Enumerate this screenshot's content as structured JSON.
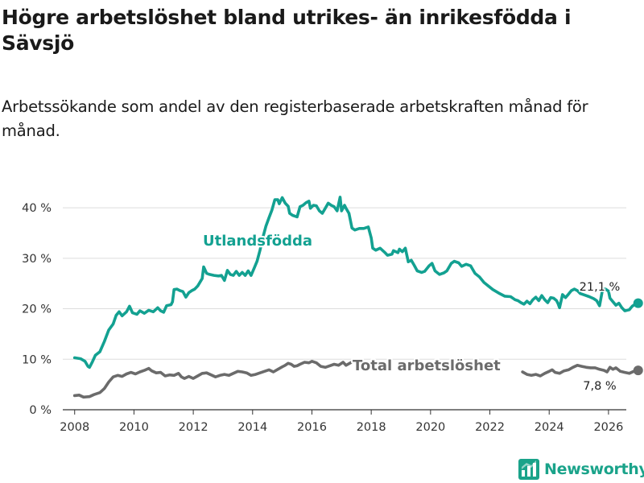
{
  "title": "Högre arbetslöshet bland utrikes- än inrikesfödda i Sävsjö",
  "subtitle": "Arbetssökande som andel av den registerbaserade arbetskraften månad för månad.",
  "brand": {
    "name": "Newsworthy",
    "color": "#1aa38a"
  },
  "chart_data": {
    "type": "line",
    "x_ticks": [
      2008,
      2010,
      2012,
      2014,
      2016,
      2018,
      2020,
      2022,
      2024,
      2026
    ],
    "y_ticks": [
      {
        "value": 0,
        "label": "0 %"
      },
      {
        "value": 10,
        "label": "10 %"
      },
      {
        "value": 20,
        "label": "20 %"
      },
      {
        "value": 30,
        "label": "30 %"
      },
      {
        "value": 40,
        "label": "40 %"
      }
    ],
    "xlim": [
      2007.6,
      2026.6
    ],
    "ylim": [
      0,
      44
    ],
    "grid": true,
    "series": [
      {
        "name": "Utlandsfödda",
        "label": "Utlandsfödda",
        "color": "#13a191",
        "end_label": "21,1 %",
        "points": [
          [
            2008.0,
            10.3
          ],
          [
            2008.2,
            10.1
          ],
          [
            2008.35,
            9.6
          ],
          [
            2008.45,
            8.6
          ],
          [
            2008.5,
            8.4
          ],
          [
            2008.6,
            9.5
          ],
          [
            2008.7,
            10.8
          ],
          [
            2008.85,
            11.5
          ],
          [
            2009.0,
            13.5
          ],
          [
            2009.15,
            15.8
          ],
          [
            2009.3,
            17.0
          ],
          [
            2009.4,
            18.7
          ],
          [
            2009.5,
            19.4
          ],
          [
            2009.6,
            18.6
          ],
          [
            2009.75,
            19.4
          ],
          [
            2009.85,
            20.5
          ],
          [
            2009.95,
            19.2
          ],
          [
            2010.1,
            18.9
          ],
          [
            2010.2,
            19.6
          ],
          [
            2010.35,
            19.1
          ],
          [
            2010.5,
            19.7
          ],
          [
            2010.65,
            19.4
          ],
          [
            2010.8,
            20.2
          ],
          [
            2010.9,
            19.6
          ],
          [
            2011.0,
            19.3
          ],
          [
            2011.1,
            20.6
          ],
          [
            2011.25,
            20.8
          ],
          [
            2011.3,
            21.4
          ],
          [
            2011.35,
            23.8
          ],
          [
            2011.45,
            23.9
          ],
          [
            2011.55,
            23.6
          ],
          [
            2011.65,
            23.4
          ],
          [
            2011.75,
            22.3
          ],
          [
            2011.85,
            23.2
          ],
          [
            2011.95,
            23.6
          ],
          [
            2012.05,
            23.9
          ],
          [
            2012.15,
            24.5
          ],
          [
            2012.3,
            26.0
          ],
          [
            2012.35,
            28.3
          ],
          [
            2012.45,
            27.0
          ],
          [
            2012.55,
            26.8
          ],
          [
            2012.7,
            26.6
          ],
          [
            2012.85,
            26.5
          ],
          [
            2012.95,
            26.6
          ],
          [
            2013.05,
            25.6
          ],
          [
            2013.15,
            27.6
          ],
          [
            2013.25,
            26.8
          ],
          [
            2013.35,
            26.6
          ],
          [
            2013.45,
            27.4
          ],
          [
            2013.55,
            26.6
          ],
          [
            2013.65,
            27.2
          ],
          [
            2013.75,
            26.6
          ],
          [
            2013.85,
            27.5
          ],
          [
            2013.95,
            26.6
          ],
          [
            2014.05,
            28.0
          ],
          [
            2014.15,
            29.4
          ],
          [
            2014.25,
            31.6
          ],
          [
            2014.35,
            34.2
          ],
          [
            2014.45,
            36.4
          ],
          [
            2014.55,
            38.0
          ],
          [
            2014.65,
            39.5
          ],
          [
            2014.75,
            41.6
          ],
          [
            2014.85,
            41.6
          ],
          [
            2014.9,
            40.8
          ],
          [
            2015.0,
            42.0
          ],
          [
            2015.1,
            40.9
          ],
          [
            2015.2,
            40.3
          ],
          [
            2015.25,
            38.9
          ],
          [
            2015.35,
            38.5
          ],
          [
            2015.5,
            38.2
          ],
          [
            2015.6,
            40.2
          ],
          [
            2015.7,
            40.5
          ],
          [
            2015.8,
            41.0
          ],
          [
            2015.9,
            41.3
          ],
          [
            2015.95,
            39.9
          ],
          [
            2016.05,
            40.5
          ],
          [
            2016.15,
            40.4
          ],
          [
            2016.25,
            39.4
          ],
          [
            2016.35,
            38.9
          ],
          [
            2016.45,
            39.9
          ],
          [
            2016.55,
            40.9
          ],
          [
            2016.65,
            40.5
          ],
          [
            2016.75,
            40.2
          ],
          [
            2016.85,
            39.4
          ],
          [
            2016.95,
            42.1
          ],
          [
            2017.0,
            39.4
          ],
          [
            2017.1,
            40.5
          ],
          [
            2017.15,
            39.9
          ],
          [
            2017.25,
            38.9
          ],
          [
            2017.35,
            36.0
          ],
          [
            2017.45,
            35.6
          ],
          [
            2017.6,
            35.9
          ],
          [
            2017.75,
            35.9
          ],
          [
            2017.9,
            36.2
          ],
          [
            2018.0,
            34.0
          ],
          [
            2018.05,
            32.0
          ],
          [
            2018.15,
            31.6
          ],
          [
            2018.3,
            32.0
          ],
          [
            2018.45,
            31.2
          ],
          [
            2018.55,
            30.6
          ],
          [
            2018.7,
            30.8
          ],
          [
            2018.75,
            31.5
          ],
          [
            2018.9,
            31.1
          ],
          [
            2018.95,
            31.8
          ],
          [
            2019.05,
            31.3
          ],
          [
            2019.15,
            32.0
          ],
          [
            2019.25,
            29.3
          ],
          [
            2019.35,
            29.6
          ],
          [
            2019.45,
            28.6
          ],
          [
            2019.55,
            27.5
          ],
          [
            2019.7,
            27.2
          ],
          [
            2019.8,
            27.4
          ],
          [
            2019.95,
            28.5
          ],
          [
            2020.05,
            29.0
          ],
          [
            2020.15,
            27.5
          ],
          [
            2020.3,
            26.8
          ],
          [
            2020.45,
            27.1
          ],
          [
            2020.55,
            27.5
          ],
          [
            2020.7,
            29.0
          ],
          [
            2020.8,
            29.4
          ],
          [
            2020.95,
            29.1
          ],
          [
            2021.05,
            28.4
          ],
          [
            2021.2,
            28.8
          ],
          [
            2021.35,
            28.5
          ],
          [
            2021.5,
            27.0
          ],
          [
            2021.65,
            26.3
          ],
          [
            2021.8,
            25.2
          ],
          [
            2021.95,
            24.5
          ],
          [
            2022.1,
            23.8
          ],
          [
            2022.3,
            23.1
          ],
          [
            2022.5,
            22.5
          ],
          [
            2022.7,
            22.4
          ],
          [
            2022.85,
            21.8
          ],
          [
            2022.95,
            21.6
          ],
          [
            2023.05,
            21.2
          ],
          [
            2023.15,
            20.9
          ],
          [
            2023.25,
            21.5
          ],
          [
            2023.35,
            21.0
          ],
          [
            2023.45,
            21.8
          ],
          [
            2023.55,
            22.3
          ],
          [
            2023.65,
            21.6
          ],
          [
            2023.75,
            22.6
          ],
          [
            2023.85,
            21.8
          ],
          [
            2023.95,
            21.2
          ],
          [
            2024.05,
            22.2
          ],
          [
            2024.15,
            22.1
          ],
          [
            2024.25,
            21.6
          ],
          [
            2024.3,
            21.0
          ],
          [
            2024.35,
            20.2
          ],
          [
            2024.45,
            22.8
          ],
          [
            2024.55,
            22.2
          ],
          [
            2024.65,
            22.9
          ],
          [
            2024.75,
            23.6
          ],
          [
            2024.85,
            23.9
          ],
          [
            2024.95,
            23.6
          ],
          [
            2025.05,
            23.0
          ],
          [
            2025.2,
            22.7
          ],
          [
            2025.35,
            22.4
          ],
          [
            2025.5,
            22.0
          ],
          [
            2025.6,
            21.6
          ],
          [
            2025.7,
            20.6
          ],
          [
            2025.8,
            23.8
          ],
          [
            2025.9,
            23.9
          ],
          [
            2026.0,
            23.5
          ],
          [
            2026.05,
            22.1
          ],
          [
            2026.15,
            21.4
          ],
          [
            2026.25,
            20.7
          ],
          [
            2026.35,
            21.1
          ],
          [
            2026.45,
            20.2
          ],
          [
            2026.55,
            19.6
          ],
          [
            2026.7,
            19.8
          ],
          [
            2026.8,
            20.5
          ],
          [
            2026.9,
            20.9
          ],
          [
            2027.0,
            21.1
          ]
        ]
      },
      {
        "name": "Total arbetslöshet",
        "label": "Total arbetslöshet",
        "color": "#6b6b6b",
        "end_label": "7,8 %",
        "points": [
          [
            2008.0,
            2.8
          ],
          [
            2008.15,
            2.9
          ],
          [
            2008.3,
            2.5
          ],
          [
            2008.5,
            2.6
          ],
          [
            2008.65,
            3.0
          ],
          [
            2008.85,
            3.4
          ],
          [
            2009.0,
            4.2
          ],
          [
            2009.15,
            5.5
          ],
          [
            2009.3,
            6.5
          ],
          [
            2009.45,
            6.8
          ],
          [
            2009.6,
            6.6
          ],
          [
            2009.75,
            7.1
          ],
          [
            2009.9,
            7.4
          ],
          [
            2010.05,
            7.1
          ],
          [
            2010.2,
            7.5
          ],
          [
            2010.35,
            7.8
          ],
          [
            2010.5,
            8.2
          ],
          [
            2010.6,
            7.7
          ],
          [
            2010.75,
            7.3
          ],
          [
            2010.9,
            7.4
          ],
          [
            2011.05,
            6.7
          ],
          [
            2011.2,
            6.9
          ],
          [
            2011.35,
            6.8
          ],
          [
            2011.5,
            7.2
          ],
          [
            2011.6,
            6.5
          ],
          [
            2011.7,
            6.2
          ],
          [
            2011.85,
            6.6
          ],
          [
            2012.0,
            6.2
          ],
          [
            2012.15,
            6.7
          ],
          [
            2012.3,
            7.2
          ],
          [
            2012.45,
            7.3
          ],
          [
            2012.6,
            6.9
          ],
          [
            2012.75,
            6.5
          ],
          [
            2012.9,
            6.8
          ],
          [
            2013.05,
            7.0
          ],
          [
            2013.2,
            6.8
          ],
          [
            2013.35,
            7.2
          ],
          [
            2013.5,
            7.6
          ],
          [
            2013.65,
            7.5
          ],
          [
            2013.8,
            7.3
          ],
          [
            2013.95,
            6.8
          ],
          [
            2014.1,
            7.0
          ],
          [
            2014.25,
            7.3
          ],
          [
            2014.4,
            7.6
          ],
          [
            2014.55,
            7.9
          ],
          [
            2014.7,
            7.5
          ],
          [
            2014.85,
            8.0
          ],
          [
            2015.0,
            8.5
          ],
          [
            2015.1,
            8.8
          ],
          [
            2015.2,
            9.2
          ],
          [
            2015.3,
            9.0
          ],
          [
            2015.4,
            8.6
          ],
          [
            2015.5,
            8.7
          ],
          [
            2015.6,
            9.0
          ],
          [
            2015.75,
            9.4
          ],
          [
            2015.9,
            9.3
          ],
          [
            2016.0,
            9.6
          ],
          [
            2016.15,
            9.3
          ],
          [
            2016.3,
            8.6
          ],
          [
            2016.45,
            8.4
          ],
          [
            2016.6,
            8.7
          ],
          [
            2016.75,
            9.0
          ],
          [
            2016.9,
            8.8
          ],
          [
            2017.05,
            9.4
          ],
          [
            2017.15,
            8.8
          ],
          [
            2017.3,
            9.3
          ],
          [
            2017.4,
            9.6
          ],
          [
            2017.5,
            9.4
          ],
          [
            2017.6,
            9.7
          ],
          [
            2023.1,
            7.5
          ],
          [
            2023.25,
            7.0
          ],
          [
            2023.4,
            6.8
          ],
          [
            2023.55,
            7.0
          ],
          [
            2023.7,
            6.7
          ],
          [
            2023.85,
            7.2
          ],
          [
            2024.0,
            7.6
          ],
          [
            2024.1,
            7.9
          ],
          [
            2024.2,
            7.4
          ],
          [
            2024.35,
            7.2
          ],
          [
            2024.5,
            7.7
          ],
          [
            2024.65,
            7.9
          ],
          [
            2024.8,
            8.4
          ],
          [
            2024.95,
            8.8
          ],
          [
            2025.1,
            8.6
          ],
          [
            2025.25,
            8.4
          ],
          [
            2025.4,
            8.3
          ],
          [
            2025.55,
            8.3
          ],
          [
            2025.7,
            8.0
          ],
          [
            2025.85,
            7.8
          ],
          [
            2025.95,
            7.5
          ],
          [
            2026.05,
            8.4
          ],
          [
            2026.15,
            8.0
          ],
          [
            2026.25,
            8.3
          ],
          [
            2026.4,
            7.6
          ],
          [
            2026.55,
            7.4
          ],
          [
            2026.7,
            7.2
          ],
          [
            2026.85,
            7.6
          ],
          [
            2027.0,
            7.8
          ]
        ]
      }
    ]
  }
}
